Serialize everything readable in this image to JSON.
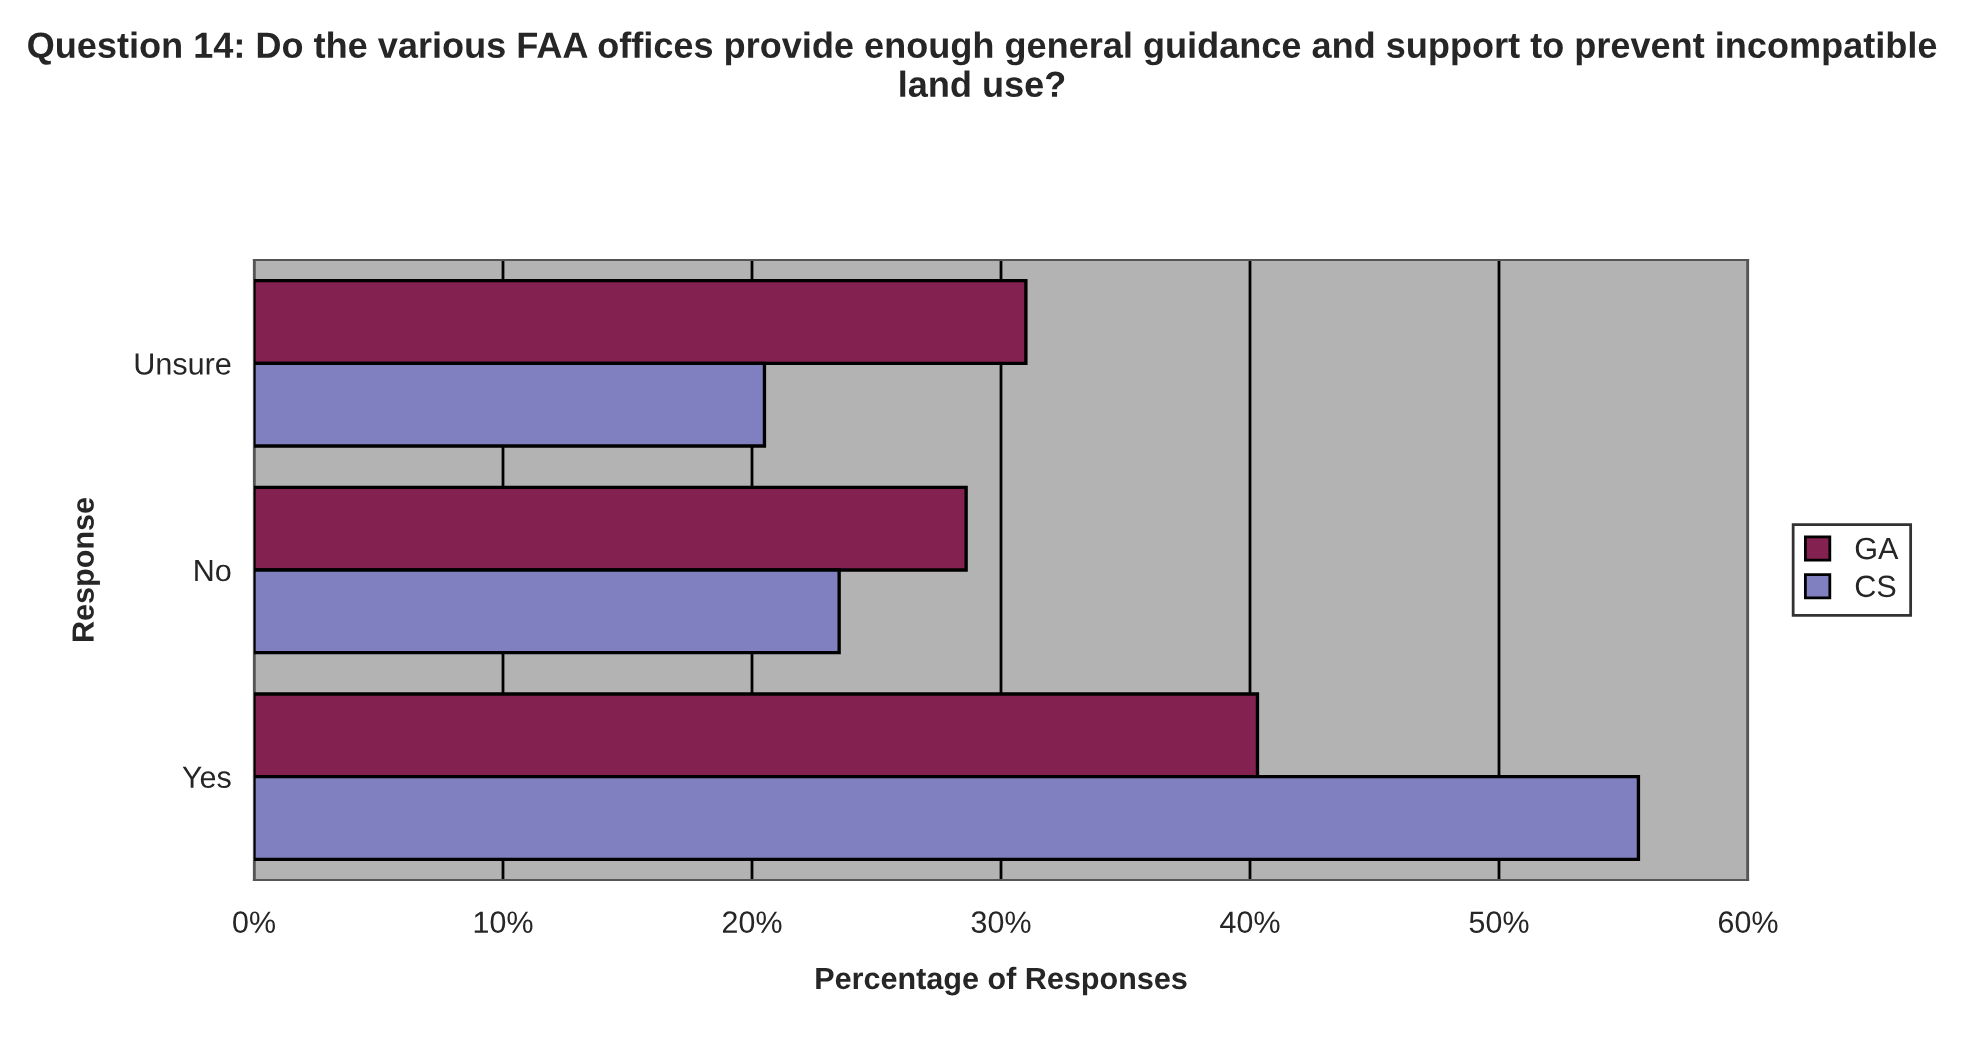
{
  "chart_data": {
    "type": "bar",
    "orientation": "horizontal",
    "title": "Question 14: Do the various FAA offices provide enough general guidance and support to prevent incompatible land use?",
    "xlabel": "Percentage of Responses",
    "ylabel": "Response",
    "categories": [
      "Unsure",
      "No",
      "Yes"
    ],
    "series": [
      {
        "name": "GA",
        "color": "#832151",
        "values": [
          31,
          28.6,
          40.3
        ]
      },
      {
        "name": "CS",
        "color": "#8080c0",
        "values": [
          20.5,
          23.5,
          55.6
        ]
      }
    ],
    "xlim": [
      0,
      60
    ],
    "xticks": [
      {
        "value": 0,
        "label": "0%"
      },
      {
        "value": 10,
        "label": "10%"
      },
      {
        "value": 20,
        "label": "20%"
      },
      {
        "value": 30,
        "label": "30%"
      },
      {
        "value": 40,
        "label": "40%"
      },
      {
        "value": 50,
        "label": "50%"
      },
      {
        "value": 60,
        "label": "60%"
      }
    ],
    "grid": "x",
    "legend": "right"
  }
}
